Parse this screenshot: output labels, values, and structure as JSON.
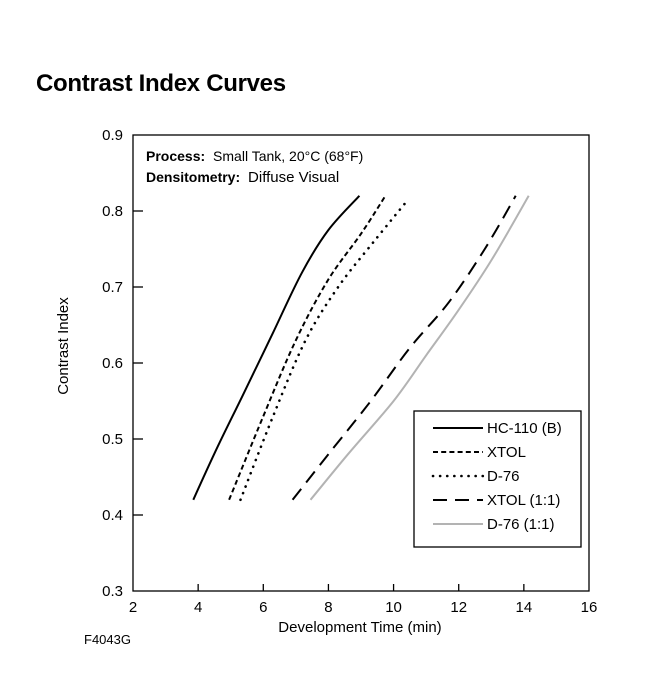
{
  "page": {
    "figure_code": "F4043G"
  },
  "chart_data": {
    "type": "line",
    "title": "Contrast Index Curves",
    "xlabel": "Development Time (min)",
    "ylabel": "Contrast Index",
    "xlim": [
      2,
      16
    ],
    "ylim": [
      0.3,
      0.9
    ],
    "xticks": [
      2,
      4,
      6,
      8,
      10,
      12,
      14,
      16
    ],
    "yticks": [
      0.3,
      0.4,
      0.5,
      0.6,
      0.7,
      0.8,
      0.9
    ],
    "grid": false,
    "legend_position": "bottom-right",
    "annotations": [
      {
        "label": "Process:",
        "text": "Small Tank, 20°C (68°F)"
      },
      {
        "label": "Densitometry:",
        "text": "Diffuse Visual"
      }
    ],
    "series": [
      {
        "name": "HC-110 (B)",
        "style": "solid",
        "color": "#000000",
        "x": [
          3.85,
          4.6,
          5.4,
          6.3,
          7.2,
          8.0,
          8.95
        ],
        "y": [
          0.42,
          0.49,
          0.56,
          0.64,
          0.72,
          0.775,
          0.82
        ]
      },
      {
        "name": "XTOL",
        "style": "short-dash",
        "color": "#000000",
        "x": [
          4.95,
          6.0,
          7.0,
          8.0,
          9.0,
          9.75
        ],
        "y": [
          0.42,
          0.53,
          0.63,
          0.71,
          0.77,
          0.82
        ]
      },
      {
        "name": "D-76",
        "style": "dotted",
        "color": "#000000",
        "x": [
          5.3,
          6.3,
          7.3,
          8.3,
          9.4,
          10.35
        ],
        "y": [
          0.42,
          0.53,
          0.63,
          0.7,
          0.76,
          0.81
        ]
      },
      {
        "name": "XTOL (1:1)",
        "style": "long-dash",
        "color": "#000000",
        "x": [
          6.9,
          8.0,
          9.3,
          10.5,
          11.7,
          12.8,
          13.75
        ],
        "y": [
          0.42,
          0.48,
          0.55,
          0.62,
          0.68,
          0.75,
          0.82
        ]
      },
      {
        "name": "D-76 (1:1)",
        "style": "solid",
        "color": "#b3b3b3",
        "x": [
          7.45,
          8.6,
          10.0,
          11.0,
          12.0,
          13.0,
          14.15
        ],
        "y": [
          0.42,
          0.48,
          0.55,
          0.61,
          0.67,
          0.735,
          0.82
        ]
      }
    ]
  }
}
